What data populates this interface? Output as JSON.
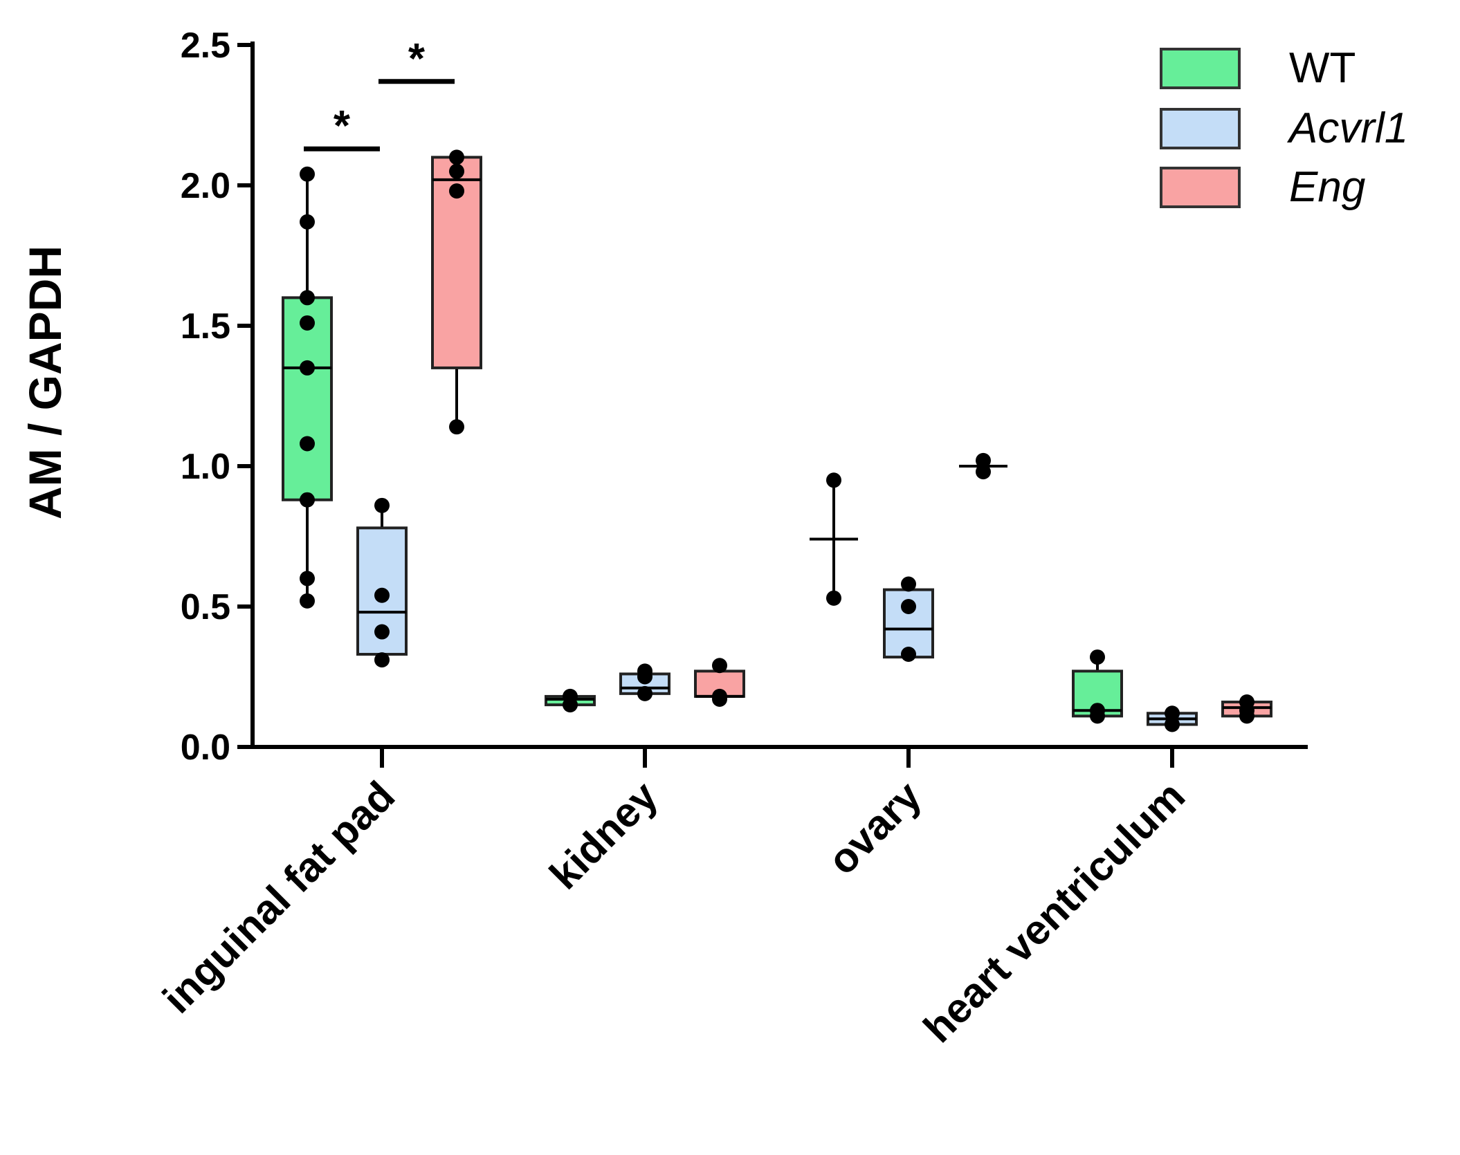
{
  "chart_data": {
    "type": "box",
    "title": "",
    "xlabel": "",
    "ylabel": "AM / GAPDH",
    "ylim": [
      0,
      2.5
    ],
    "yticks": [
      "0.0",
      "0.5",
      "1.0",
      "1.5",
      "2.0",
      "2.5"
    ],
    "categories": [
      "inguinal fat pad",
      "kidney",
      "ovary",
      "heart ventriculum"
    ],
    "legend_position": "top-right",
    "series": [
      {
        "name": "WT",
        "italic": false,
        "color": "#66ee99",
        "boxes": [
          {
            "min": 0.52,
            "q1": 0.88,
            "median": 1.35,
            "q3": 1.6,
            "max": 2.04,
            "points": [
              0.52,
              0.6,
              0.88,
              1.08,
              1.35,
              1.51,
              1.6,
              1.87,
              2.04
            ]
          },
          {
            "min": 0.15,
            "q1": 0.15,
            "median": 0.17,
            "q3": 0.18,
            "max": 0.19,
            "points": [
              0.15,
              0.18
            ]
          },
          {
            "min": 0.53,
            "q1": 0.74,
            "median": 0.74,
            "q3": 0.74,
            "max": 0.95,
            "points": [
              0.53,
              0.95
            ]
          },
          {
            "min": 0.11,
            "q1": 0.11,
            "median": 0.13,
            "q3": 0.27,
            "max": 0.32,
            "points": [
              0.11,
              0.13,
              0.32
            ]
          }
        ]
      },
      {
        "name": "Acvrl1",
        "italic": true,
        "color": "#c4ddf7",
        "boxes": [
          {
            "min": 0.3,
            "q1": 0.33,
            "median": 0.48,
            "q3": 0.78,
            "max": 0.86,
            "points": [
              0.31,
              0.41,
              0.54,
              0.86
            ]
          },
          {
            "min": 0.18,
            "q1": 0.19,
            "median": 0.21,
            "q3": 0.26,
            "max": 0.27,
            "points": [
              0.19,
              0.25,
              0.27
            ]
          },
          {
            "min": 0.32,
            "q1": 0.32,
            "median": 0.42,
            "q3": 0.56,
            "max": 0.58,
            "points": [
              0.33,
              0.5,
              0.58
            ]
          },
          {
            "min": 0.08,
            "q1": 0.08,
            "median": 0.1,
            "q3": 0.12,
            "max": 0.12,
            "points": [
              0.08,
              0.12
            ]
          }
        ]
      },
      {
        "name": "Eng",
        "italic": true,
        "color": "#f9a3a3",
        "boxes": [
          {
            "min": 1.14,
            "q1": 1.35,
            "median": 2.02,
            "q3": 2.1,
            "max": 2.11,
            "points": [
              1.14,
              1.98,
              2.05,
              2.1
            ]
          },
          {
            "min": 0.16,
            "q1": 0.18,
            "median": 0.18,
            "q3": 0.27,
            "max": 0.29,
            "points": [
              0.17,
              0.18,
              0.29
            ]
          },
          {
            "min": 0.98,
            "q1": 1.0,
            "median": 1.0,
            "q3": 1.0,
            "max": 1.02,
            "points": [
              0.98,
              1.02
            ]
          },
          {
            "min": 0.11,
            "q1": 0.11,
            "median": 0.14,
            "q3": 0.16,
            "max": 0.17,
            "points": [
              0.11,
              0.13,
              0.16
            ]
          }
        ]
      }
    ],
    "annotations": [
      {
        "text": "*",
        "from_series": 0,
        "to_series": 1,
        "category": 0,
        "y": 2.13
      },
      {
        "text": "*",
        "from_series": 1,
        "to_series": 2,
        "category": 0,
        "y": 2.37
      }
    ]
  }
}
